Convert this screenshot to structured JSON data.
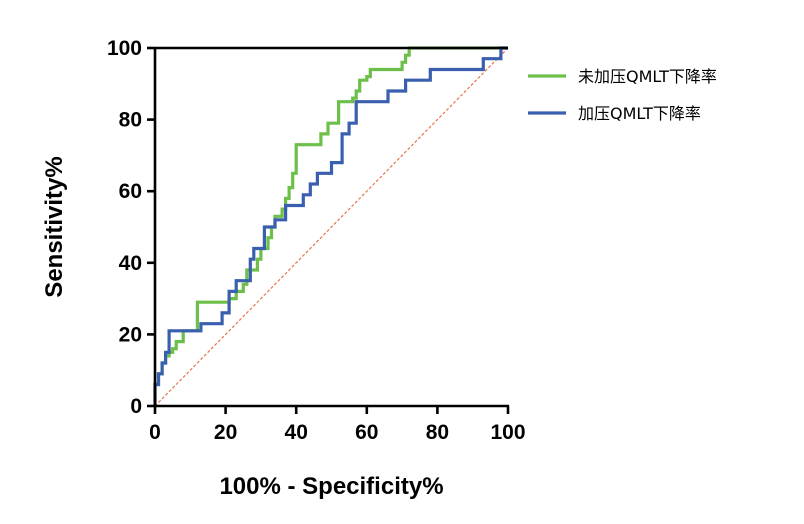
{
  "chart_data": {
    "type": "line",
    "title": "",
    "xlabel": "100% - Specificity%",
    "ylabel": "Sensitivity%",
    "xlim": [
      0,
      100
    ],
    "ylim": [
      0,
      100
    ],
    "x_ticks": [
      0,
      20,
      40,
      60,
      80,
      100
    ],
    "y_ticks": [
      0,
      20,
      40,
      60,
      80,
      100
    ],
    "grid": false,
    "legend_position": "right",
    "reference_line": {
      "x": [
        0,
        100
      ],
      "y": [
        0,
        100
      ],
      "color": "#e8734a"
    },
    "series": [
      {
        "name": "未加压QMLT下降率",
        "color": "#6cc04a",
        "x": [
          0,
          0,
          1,
          1,
          2,
          2,
          3,
          3,
          4,
          4,
          5,
          5,
          6,
          6,
          8,
          8,
          12,
          12,
          21,
          21,
          23,
          23,
          25,
          25,
          26,
          26,
          29,
          29,
          30,
          30,
          32,
          32,
          33,
          33,
          34,
          34,
          36,
          36,
          37,
          37,
          38,
          38,
          39,
          39,
          40,
          40,
          47,
          47,
          49,
          49,
          52,
          52,
          56,
          56,
          57,
          57,
          58,
          58,
          60,
          60,
          61,
          61,
          70,
          70,
          71,
          71,
          72,
          72,
          100
        ],
        "y": [
          0,
          6,
          6,
          9,
          9,
          12,
          12,
          14,
          14,
          15,
          15,
          16,
          16,
          18,
          18,
          21,
          21,
          29,
          29,
          30,
          30,
          32,
          32,
          34,
          34,
          38,
          38,
          41,
          41,
          44,
          44,
          47,
          47,
          50,
          50,
          53,
          53,
          55,
          55,
          58,
          58,
          61,
          61,
          65,
          65,
          73,
          73,
          76,
          76,
          79,
          79,
          85,
          85,
          86,
          86,
          88,
          88,
          91,
          91,
          92,
          92,
          94,
          94,
          96,
          96,
          98,
          98,
          100,
          100
        ]
      },
      {
        "name": "加压QMLT下降率",
        "color": "#3a5fae",
        "x": [
          0,
          0,
          1,
          1,
          2,
          2,
          3,
          3,
          4,
          4,
          13,
          13,
          19,
          19,
          21,
          21,
          23,
          23,
          27,
          27,
          28,
          28,
          31,
          31,
          34,
          34,
          37,
          37,
          42,
          42,
          44,
          44,
          46,
          46,
          50,
          50,
          53,
          53,
          55,
          55,
          57,
          57,
          66,
          66,
          71,
          71,
          78,
          78,
          93,
          93,
          98,
          98,
          100
        ],
        "y": [
          0,
          6,
          6,
          9,
          9,
          12,
          12,
          15,
          15,
          21,
          21,
          23,
          23,
          26,
          26,
          32,
          32,
          35,
          35,
          41,
          41,
          44,
          44,
          50,
          50,
          52,
          52,
          56,
          56,
          59,
          59,
          62,
          62,
          65,
          65,
          68,
          68,
          76,
          76,
          79,
          79,
          85,
          85,
          88,
          88,
          91,
          91,
          94,
          94,
          97,
          97,
          100,
          100
        ]
      }
    ]
  }
}
